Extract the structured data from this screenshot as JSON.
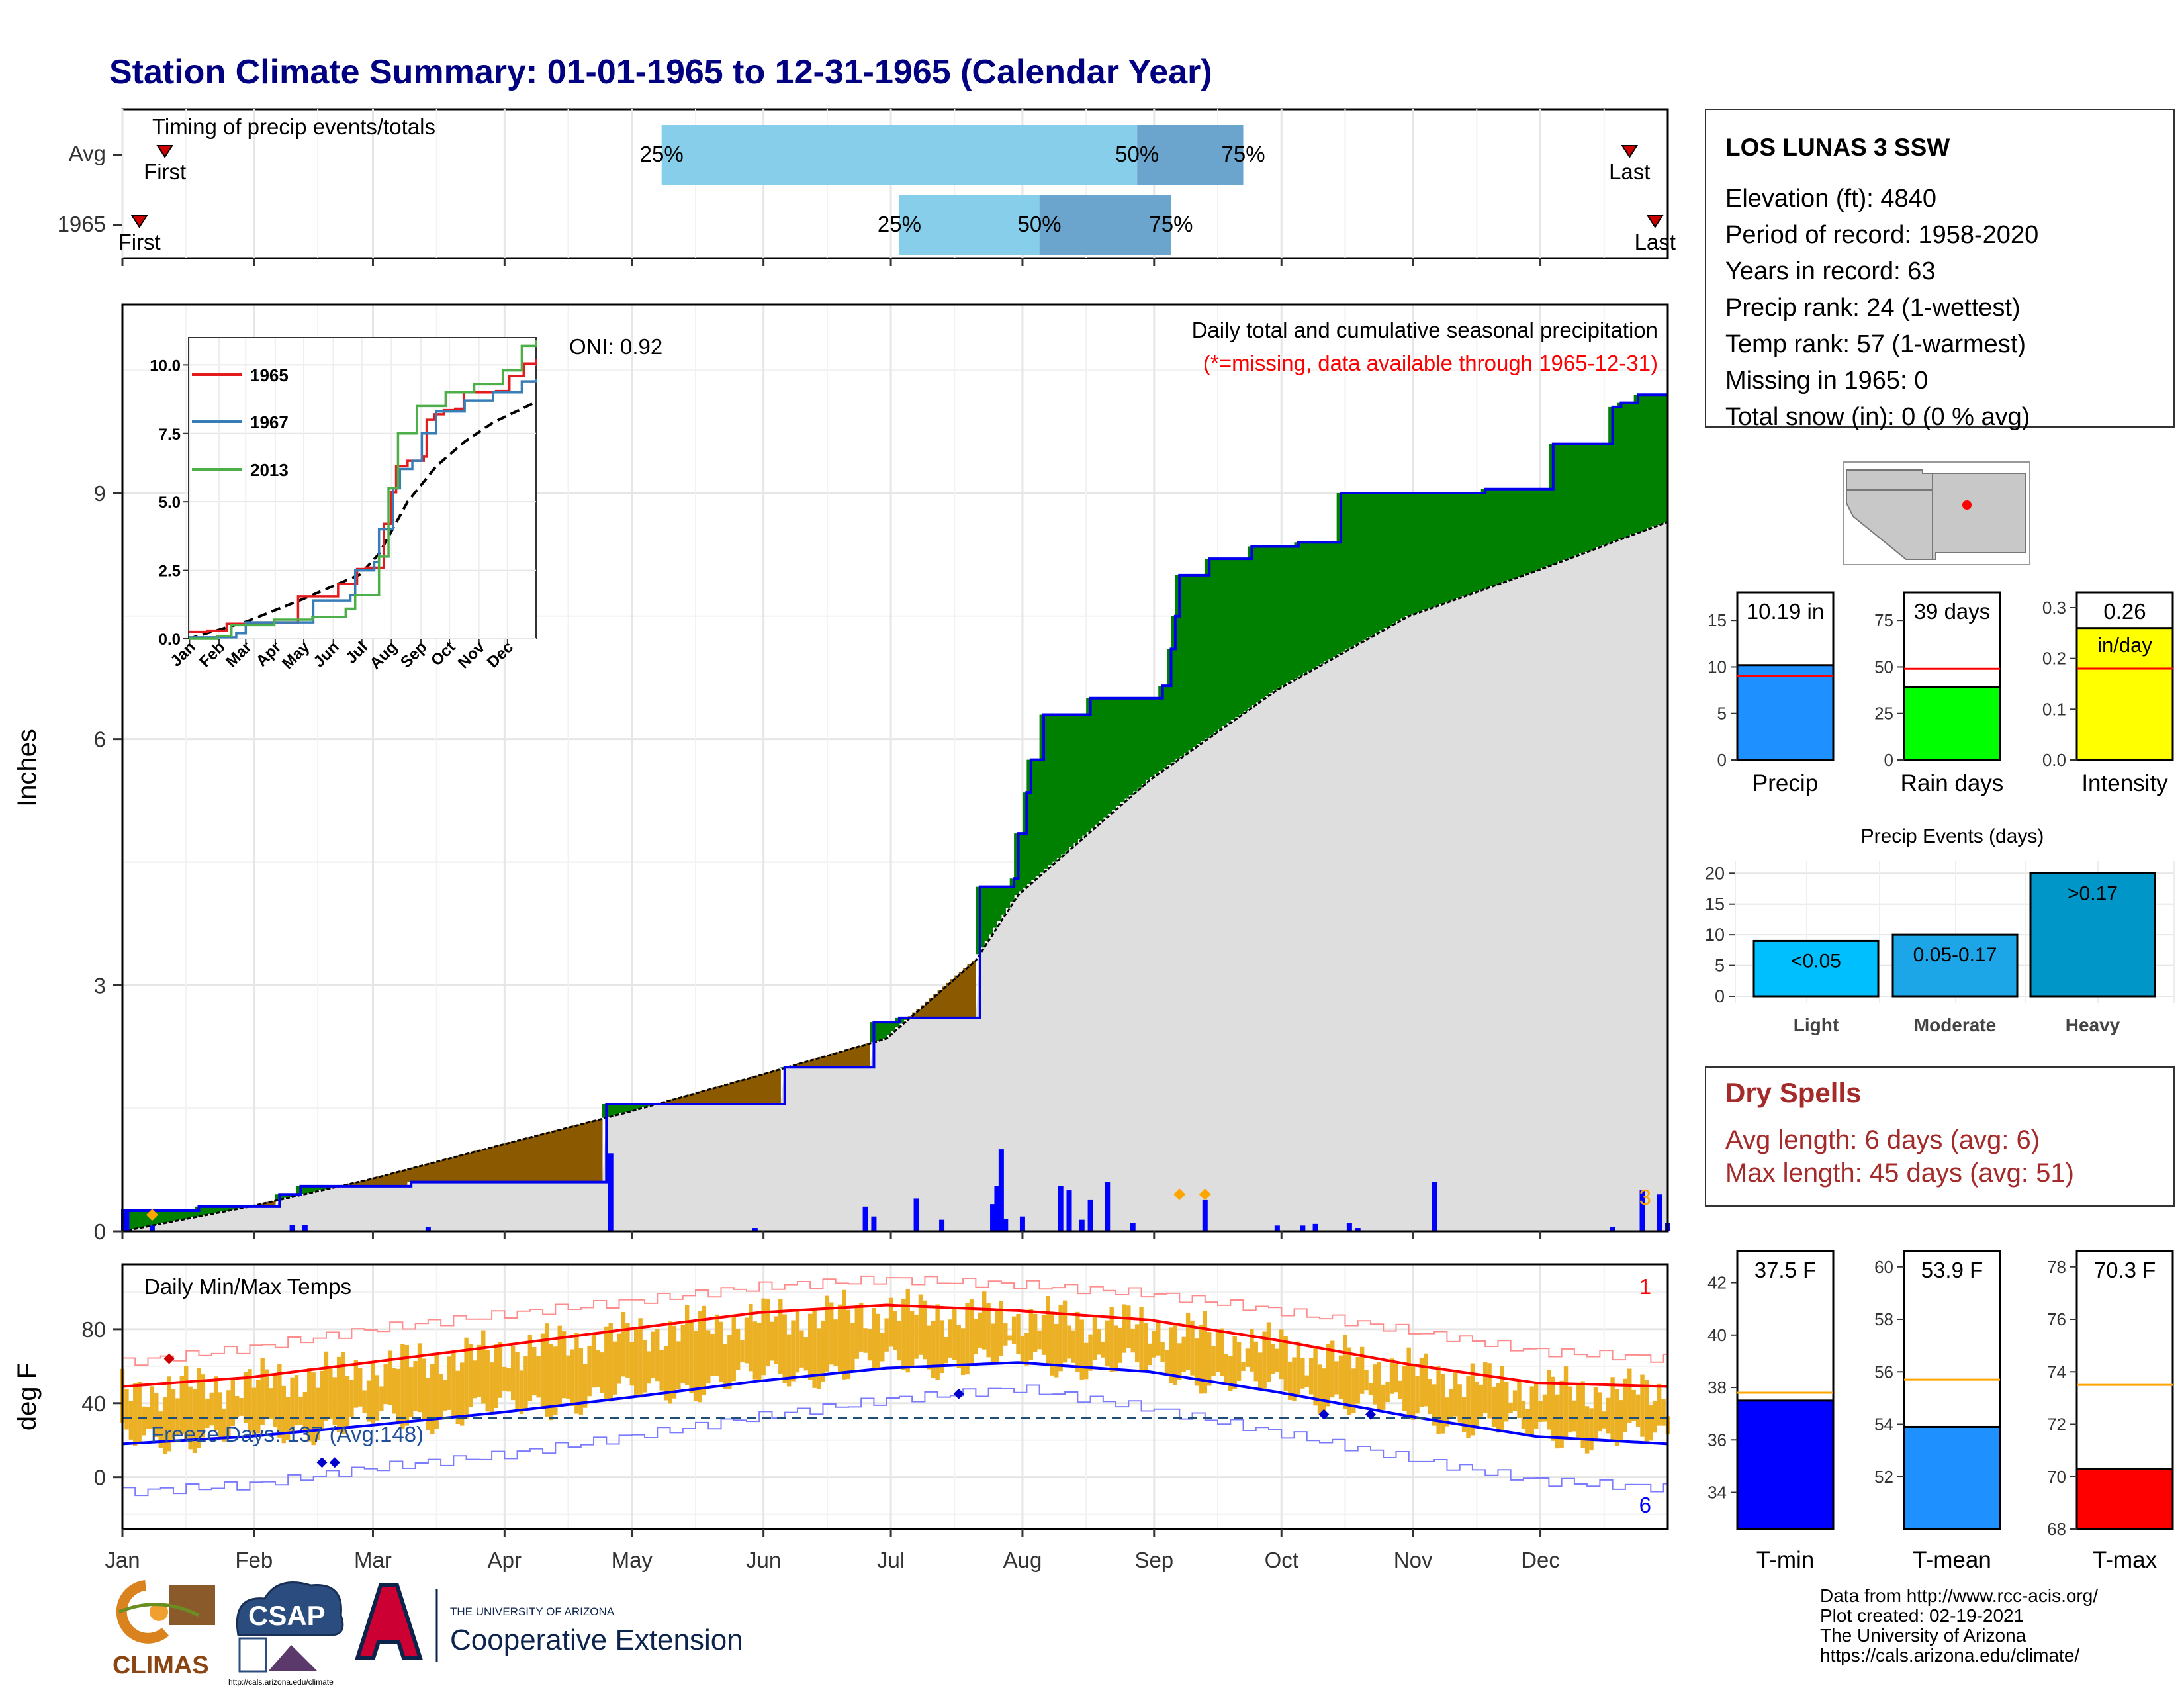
{
  "title": "Station Climate Summary: 01-01-1965 to 12-31-1965 (Calendar Year)",
  "colors": {
    "title": "#000080",
    "green": "#008000",
    "brown": "#8B5A00",
    "cum_line": "#0000EE",
    "gray_fill": "#DEDEDE",
    "orange": "#FFA500",
    "red": "#FF0000",
    "dry_red": "#A52A2A"
  },
  "timing": {
    "label": "Timing of precip events/totals",
    "rows": [
      {
        "name": "Avg",
        "first_label": "First",
        "last_label": "Last",
        "first_doy": 11,
        "last_doy": 356,
        "q25": 128,
        "q50": 240,
        "q75": 265,
        "q25_label": "25%",
        "q50_label": "50%",
        "q75_label": "75%"
      },
      {
        "name": "1965",
        "first_label": "First",
        "last_label": "Last",
        "first_doy": 5,
        "last_doy": 362,
        "q25": 184,
        "q50": 217,
        "q75": 248,
        "q25_label": "25%",
        "q50_label": "50%",
        "q75_label": "75%"
      }
    ]
  },
  "months": [
    "Jan",
    "Feb",
    "Mar",
    "Apr",
    "May",
    "Jun",
    "Jul",
    "Aug",
    "Sep",
    "Oct",
    "Nov",
    "Dec"
  ],
  "precip": {
    "ylabel": "Inches",
    "yticks": [
      "0",
      "3",
      "6",
      "9"
    ],
    "oni_label": "ONI: 0.92",
    "subtitle": "Daily total and cumulative seasonal precipitation",
    "missing_note": "(*=missing, data available through 1965-12-31)",
    "corner_count": "3",
    "cumulative_steps": [
      [
        1,
        0.25
      ],
      [
        19,
        0.3
      ],
      [
        38,
        0.45
      ],
      [
        43,
        0.55
      ],
      [
        69,
        0.6
      ],
      [
        115,
        1.55
      ],
      [
        150,
        1.55
      ],
      [
        157,
        2.0
      ],
      [
        175,
        2.0
      ],
      [
        178,
        2.55
      ],
      [
        184,
        2.6
      ],
      [
        202,
        2.6
      ],
      [
        203,
        4.2
      ],
      [
        211,
        4.3
      ],
      [
        212,
        4.85
      ],
      [
        214,
        5.35
      ],
      [
        215,
        5.75
      ],
      [
        218,
        6.3
      ],
      [
        229,
        6.5
      ],
      [
        246,
        6.65
      ],
      [
        247,
        6.65
      ],
      [
        248,
        7.1
      ],
      [
        249,
        7.5
      ],
      [
        250,
        8.0
      ],
      [
        257,
        8.2
      ],
      [
        267,
        8.35
      ],
      [
        278,
        8.4
      ],
      [
        288,
        9.0
      ],
      [
        322,
        9.05
      ],
      [
        337,
        9.05
      ],
      [
        338,
        9.6
      ],
      [
        352,
        10.05
      ],
      [
        354,
        10.1
      ],
      [
        358,
        10.2
      ],
      [
        365,
        10.2
      ]
    ],
    "normal_cumulative": [
      [
        1,
        0.0
      ],
      [
        31,
        0.3
      ],
      [
        59,
        0.63
      ],
      [
        90,
        1.05
      ],
      [
        120,
        1.45
      ],
      [
        151,
        1.9
      ],
      [
        181,
        2.35
      ],
      [
        202,
        3.3
      ],
      [
        212,
        4.1
      ],
      [
        243,
        5.5
      ],
      [
        273,
        6.6
      ],
      [
        304,
        7.5
      ],
      [
        334,
        8.05
      ],
      [
        365,
        8.65
      ]
    ],
    "daily_bars": [
      [
        2,
        0.25
      ],
      [
        8,
        0.07
      ],
      [
        41,
        0.08
      ],
      [
        44,
        0.08
      ],
      [
        73,
        0.05
      ],
      [
        116,
        0.95
      ],
      [
        150,
        0.04
      ],
      [
        176,
        0.3
      ],
      [
        178,
        0.18
      ],
      [
        188,
        0.4
      ],
      [
        194,
        0.14
      ],
      [
        206,
        0.33
      ],
      [
        207,
        0.55
      ],
      [
        208,
        1.0
      ],
      [
        209,
        0.15
      ],
      [
        213,
        0.18
      ],
      [
        222,
        0.55
      ],
      [
        224,
        0.5
      ],
      [
        227,
        0.14
      ],
      [
        229,
        0.38
      ],
      [
        233,
        0.6
      ],
      [
        239,
        0.1
      ],
      [
        256,
        0.38
      ],
      [
        273,
        0.07
      ],
      [
        279,
        0.07
      ],
      [
        282,
        0.09
      ],
      [
        290,
        0.1
      ],
      [
        292,
        0.04
      ],
      [
        310,
        0.6
      ],
      [
        352,
        0.05
      ],
      [
        359,
        0.5
      ],
      [
        363,
        0.45
      ],
      [
        365,
        0.1
      ]
    ],
    "markers": [
      [
        8,
        0.2
      ],
      [
        250,
        0.45
      ],
      [
        256,
        0.45
      ]
    ]
  },
  "inset": {
    "ytick_labels": [
      "0.0",
      "2.5",
      "5.0",
      "7.5",
      "10.0"
    ],
    "month_labels": [
      "Jan",
      "Feb",
      "Mar",
      "Apr",
      "May",
      "Jun",
      "Jul",
      "Aug",
      "Sep",
      "Oct",
      "Nov",
      "Dec"
    ],
    "series": [
      {
        "name": "1965",
        "color": "#E41A1C",
        "points": [
          [
            0,
            0.25
          ],
          [
            20,
            0.3
          ],
          [
            40,
            0.55
          ],
          [
            70,
            0.6
          ],
          [
            115,
            1.55
          ],
          [
            150,
            1.55
          ],
          [
            157,
            2.0
          ],
          [
            177,
            2.55
          ],
          [
            186,
            2.6
          ],
          [
            202,
            2.6
          ],
          [
            205,
            4.2
          ],
          [
            213,
            5.35
          ],
          [
            218,
            6.3
          ],
          [
            230,
            6.5
          ],
          [
            247,
            6.65
          ],
          [
            250,
            8.0
          ],
          [
            258,
            8.2
          ],
          [
            268,
            8.35
          ],
          [
            280,
            8.4
          ],
          [
            289,
            9.0
          ],
          [
            323,
            9.05
          ],
          [
            337,
            9.6
          ],
          [
            352,
            10.05
          ],
          [
            365,
            10.2
          ]
        ]
      },
      {
        "name": "1967",
        "color": "#377EB8",
        "points": [
          [
            0,
            0.05
          ],
          [
            50,
            0.2
          ],
          [
            60,
            0.6
          ],
          [
            130,
            0.6
          ],
          [
            131,
            1.4
          ],
          [
            170,
            1.6
          ],
          [
            175,
            2.5
          ],
          [
            195,
            2.8
          ],
          [
            200,
            4.0
          ],
          [
            215,
            5.5
          ],
          [
            222,
            6.2
          ],
          [
            235,
            6.5
          ],
          [
            245,
            7.5
          ],
          [
            260,
            8.3
          ],
          [
            290,
            8.7
          ],
          [
            320,
            9.0
          ],
          [
            350,
            9.4
          ],
          [
            365,
            9.5
          ]
        ]
      },
      {
        "name": "2013",
        "color": "#4DAF4A",
        "points": [
          [
            0,
            0.0
          ],
          [
            30,
            0.1
          ],
          [
            45,
            0.5
          ],
          [
            90,
            0.7
          ],
          [
            130,
            0.8
          ],
          [
            165,
            1.1
          ],
          [
            175,
            1.6
          ],
          [
            190,
            1.6
          ],
          [
            200,
            3.0
          ],
          [
            210,
            5.5
          ],
          [
            220,
            7.5
          ],
          [
            240,
            8.5
          ],
          [
            270,
            9.0
          ],
          [
            300,
            9.3
          ],
          [
            330,
            9.8
          ],
          [
            350,
            10.7
          ],
          [
            365,
            10.9
          ]
        ]
      }
    ],
    "normal_points": [
      [
        0,
        0.0
      ],
      [
        60,
        0.62
      ],
      [
        120,
        1.45
      ],
      [
        180,
        2.35
      ],
      [
        200,
        3.1
      ],
      [
        230,
        5.0
      ],
      [
        260,
        6.3
      ],
      [
        290,
        7.2
      ],
      [
        320,
        7.9
      ],
      [
        365,
        8.65
      ]
    ]
  },
  "temps": {
    "ylabel": "deg F",
    "yticks": [
      "0",
      "40",
      "80"
    ],
    "label": "Daily Min/Max Temps",
    "freeze_label": "Freeze Days: 137 (Avg:148)",
    "freeze_value": 32,
    "record_high_count": "1",
    "record_low_count": "6",
    "norm_max": [
      [
        1,
        49
      ],
      [
        31,
        54
      ],
      [
        59,
        62
      ],
      [
        90,
        71
      ],
      [
        120,
        80
      ],
      [
        151,
        89
      ],
      [
        181,
        93
      ],
      [
        212,
        90
      ],
      [
        243,
        85
      ],
      [
        273,
        74
      ],
      [
        304,
        61
      ],
      [
        334,
        51
      ],
      [
        365,
        49
      ]
    ],
    "norm_min": [
      [
        1,
        18
      ],
      [
        31,
        22
      ],
      [
        59,
        28
      ],
      [
        90,
        35
      ],
      [
        120,
        43
      ],
      [
        151,
        52
      ],
      [
        181,
        59
      ],
      [
        212,
        62
      ],
      [
        243,
        57
      ],
      [
        273,
        46
      ],
      [
        304,
        33
      ],
      [
        334,
        22
      ],
      [
        365,
        18
      ]
    ],
    "rec_max": [
      [
        1,
        62
      ],
      [
        31,
        70
      ],
      [
        59,
        80
      ],
      [
        90,
        88
      ],
      [
        120,
        95
      ],
      [
        151,
        103
      ],
      [
        181,
        107
      ],
      [
        212,
        104
      ],
      [
        243,
        99
      ],
      [
        273,
        90
      ],
      [
        304,
        79
      ],
      [
        334,
        68
      ],
      [
        365,
        64
      ]
    ],
    "rec_min": [
      [
        1,
        -8
      ],
      [
        31,
        -4
      ],
      [
        59,
        5
      ],
      [
        90,
        12
      ],
      [
        120,
        22
      ],
      [
        151,
        33
      ],
      [
        181,
        42
      ],
      [
        212,
        48
      ],
      [
        243,
        37
      ],
      [
        273,
        24
      ],
      [
        304,
        10
      ],
      [
        334,
        -2
      ],
      [
        365,
        -6
      ]
    ],
    "markers_high": [
      [
        12,
        64
      ]
    ],
    "markers_low": [
      [
        48,
        8
      ],
      [
        51,
        8
      ],
      [
        198,
        45
      ],
      [
        284,
        34
      ],
      [
        295,
        34
      ]
    ]
  },
  "station": {
    "name": "LOS LUNAS 3 SSW",
    "lines": [
      "Elevation (ft): 4840",
      "Period of record: 1958-2020",
      "Years in record: 63",
      "Precip rank: 24 (1-wettest)",
      "Temp rank: 57 (1-warmest)",
      "Missing in 1965: 0",
      "Total snow (in): 0 (0 % avg)"
    ]
  },
  "summary_bars": [
    {
      "label": "Precip",
      "value": 10.19,
      "value_label": "10.19 in",
      "avg": 9.0,
      "ymax": 18,
      "ticks": [
        0,
        5,
        10,
        15
      ],
      "color": "#1E90FF"
    },
    {
      "label": "Rain days",
      "value": 39,
      "value_label": "39 days",
      "avg": 49,
      "ymax": 90,
      "ticks": [
        0,
        25,
        50,
        75
      ],
      "color": "#00FF00"
    },
    {
      "label": "Intensity",
      "value": 0.26,
      "value_label": "0.26",
      "value_label2": "in/day",
      "avg": 0.18,
      "ymax": 0.33,
      "ticks": [
        0.0,
        0.1,
        0.2,
        0.3
      ],
      "tick_labels": [
        "0.0",
        "0.1",
        "0.2",
        "0.3"
      ],
      "color": "#FFFF00"
    }
  ],
  "events": {
    "title": "Precip Events (days)",
    "yticks": [
      0,
      5,
      10,
      15,
      20
    ],
    "bars": [
      {
        "label": "Light",
        "range": "<0.05",
        "value": 9,
        "color": "#00BFFF"
      },
      {
        "label": "Moderate",
        "range": "0.05-0.17",
        "value": 10,
        "color": "#1CA6E8"
      },
      {
        "label": "Heavy",
        "range": ">0.17",
        "value": 20,
        "color": "#0096C8"
      }
    ]
  },
  "dry_spells": {
    "title": "Dry Spells",
    "avg_line": "Avg length: 6 days (avg: 6)",
    "max_line": "Max length: 45 days (avg: 51)"
  },
  "temp_bars": [
    {
      "label": "T-min",
      "value": 37.5,
      "value_label": "37.5 F",
      "avg": 37.8,
      "ymin": 32.6,
      "ymax": 43.2,
      "ticks": [
        34,
        36,
        38,
        40,
        42
      ],
      "color": "#0000FF"
    },
    {
      "label": "T-mean",
      "value": 53.9,
      "value_label": "53.9 F",
      "avg": 55.7,
      "ymin": 50.0,
      "ymax": 60.6,
      "ticks": [
        52,
        54,
        56,
        58,
        60
      ],
      "color": "#1E90FF"
    },
    {
      "label": "T-max",
      "value": 70.3,
      "value_label": "70.3 F",
      "avg": 73.5,
      "ymin": 68.0,
      "ymax": 78.6,
      "ticks": [
        68,
        70,
        72,
        74,
        76,
        78
      ],
      "color": "#FF0000"
    }
  ],
  "footer": {
    "lines": [
      "Data from http://www.rcc-acis.org/",
      "Plot created: 02-19-2021",
      "The University of Arizona",
      "https://cals.arizona.edu/climate/"
    ],
    "climas": "CLIMAS",
    "csap": "CSAP",
    "csap_url": "http://cals.arizona.edu/climate",
    "ua_line1": "THE UNIVERSITY OF ARIZONA",
    "ua_line2": "Cooperative Extension"
  }
}
